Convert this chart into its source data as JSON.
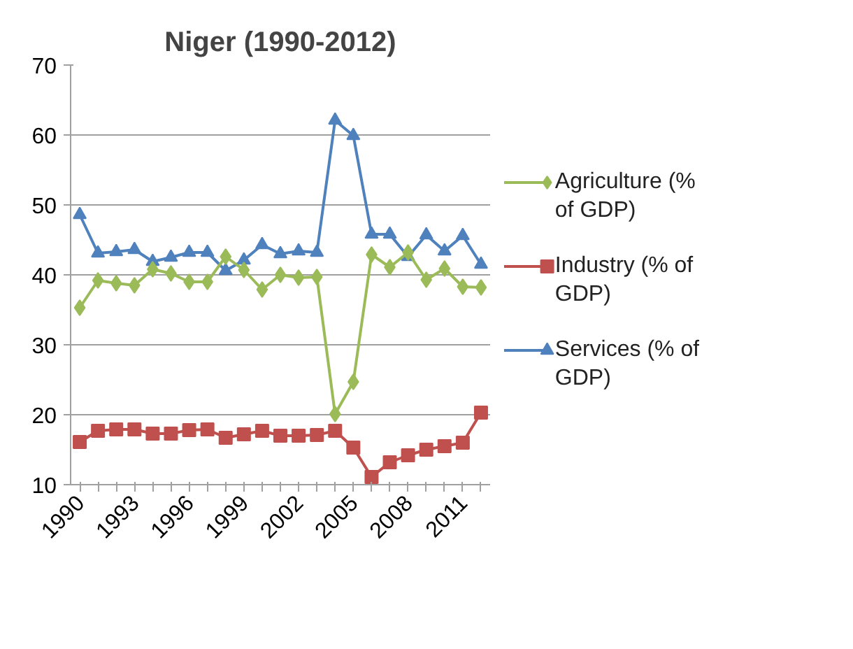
{
  "chart_data": {
    "type": "line",
    "title": "Niger (1990-2012)",
    "categories": [
      "1990",
      null,
      null,
      "1993",
      null,
      null,
      "1996",
      null,
      null,
      "1999",
      null,
      null,
      "2002",
      null,
      null,
      "2005",
      null,
      null,
      "2008",
      null,
      null,
      "2011",
      null
    ],
    "series": [
      {
        "name": "Agriculture (% of GDP)",
        "color": "#9bbb59",
        "marker": "diamond",
        "values": [
          35.3,
          39.2,
          38.8,
          38.5,
          40.8,
          40.2,
          39.0,
          39.0,
          42.6,
          40.7,
          37.9,
          40.0,
          39.6,
          39.7,
          20.1,
          24.7,
          42.9,
          41.1,
          43.2,
          39.3,
          40.9,
          38.3,
          38.2
        ]
      },
      {
        "name": "Industry (% of GDP)",
        "color": "#c0504d",
        "marker": "square",
        "values": [
          16.1,
          17.7,
          17.9,
          17.9,
          17.3,
          17.3,
          17.8,
          17.9,
          16.7,
          17.2,
          17.7,
          17.0,
          17.0,
          17.1,
          17.7,
          15.3,
          11.1,
          13.2,
          14.2,
          15.0,
          15.5,
          16.0,
          20.3
        ]
      },
      {
        "name": "Services (% of GDP)",
        "color": "#4f81bd",
        "marker": "triangle",
        "values": [
          48.6,
          43.1,
          43.3,
          43.6,
          41.9,
          42.5,
          43.2,
          43.2,
          40.6,
          42.1,
          44.3,
          43.0,
          43.4,
          43.2,
          62.1,
          59.9,
          45.8,
          45.8,
          42.6,
          45.7,
          43.4,
          45.6,
          41.5
        ]
      }
    ],
    "ylim": [
      10,
      70
    ],
    "yticks": [
      10,
      20,
      30,
      40,
      50,
      60,
      70
    ],
    "grid": "y",
    "legend": "right",
    "line_style": "solid"
  }
}
